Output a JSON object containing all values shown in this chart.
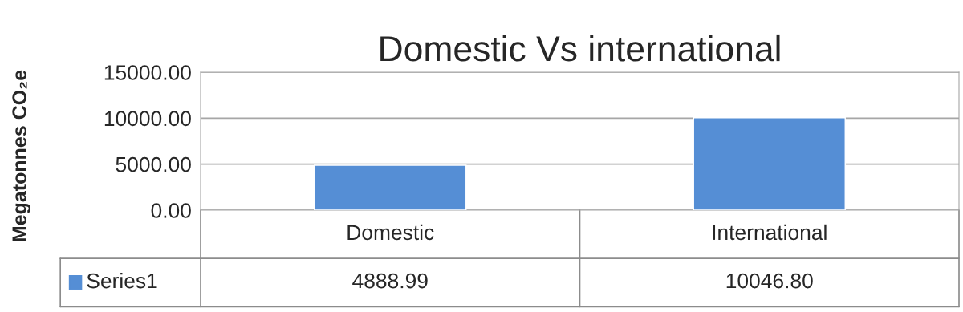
{
  "chart_data": {
    "type": "bar",
    "title": "Domestic Vs international",
    "ylabel": "Megatonnes CO₂e",
    "categories": [
      "Domestic",
      "International"
    ],
    "series": [
      {
        "name": "Series1",
        "color": "#558ed5",
        "values": [
          4888.99,
          10046.8
        ],
        "value_labels": [
          "4888.99",
          "10046.80"
        ]
      }
    ],
    "ylim": [
      0,
      15000
    ],
    "yticks": [
      {
        "value": 0,
        "label": "0.00"
      },
      {
        "value": 5000,
        "label": "5000.00"
      },
      {
        "value": 10000,
        "label": "10000.00"
      },
      {
        "value": 15000,
        "label": "15000.00"
      }
    ],
    "grid": "y"
  }
}
